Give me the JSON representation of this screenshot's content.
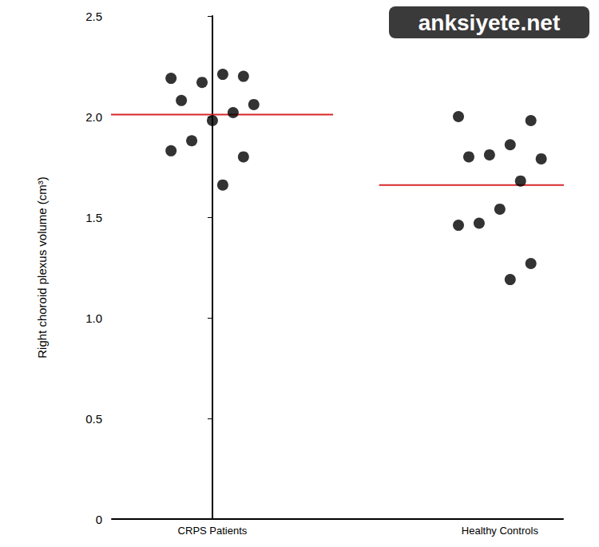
{
  "chart_data": {
    "type": "scatter",
    "ylabel": "Right choroid plexus volume (cm³)",
    "categories": [
      "CRPS Patients",
      "Healthy Controls"
    ],
    "values": [
      [
        2.19,
        2.2,
        2.21,
        2.17,
        2.08,
        2.06,
        2.02,
        1.98,
        1.88,
        1.83,
        1.8,
        1.66
      ],
      [
        2.0,
        1.98,
        1.86,
        1.81,
        1.8,
        1.79,
        1.68,
        1.54,
        1.47,
        1.46,
        1.27,
        1.19
      ]
    ],
    "means": [
      2.01,
      1.66
    ],
    "color": "#000000",
    "mean_color": "#d9262b",
    "marker": "circle",
    "ylim": [
      0,
      2.5
    ],
    "yticks": [
      0,
      0.5,
      {
        "value": 1,
        "label": "1.0"
      },
      1.5,
      {
        "value": 2,
        "label": "2.0"
      },
      2.5
    ],
    "grid": false,
    "annotations": [
      "anksiyete.net"
    ]
  }
}
